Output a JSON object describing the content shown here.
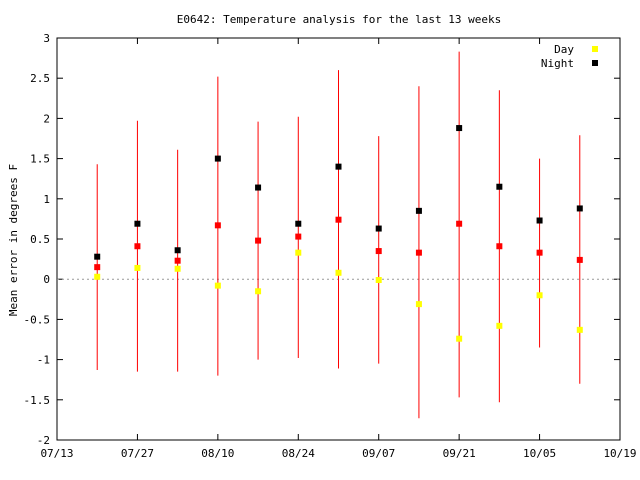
{
  "chart_data": {
    "type": "scatter",
    "title": "E0642: Temperature analysis for the last 13 weeks",
    "ylabel": "Mean error in degrees F",
    "xlabel": "",
    "x_range": [
      "07/13",
      "10/19"
    ],
    "ylim": [
      -2,
      3
    ],
    "x_ticks": [
      "07/13",
      "07/27",
      "08/10",
      "08/24",
      "09/07",
      "09/21",
      "10/05",
      "10/19"
    ],
    "y_ticks": [
      "-2",
      "-1.5",
      "-1",
      "-0.5",
      "0",
      "0.5",
      "1",
      "1.5",
      "2",
      "2.5",
      "3"
    ],
    "zero_line": true,
    "grid": false,
    "legend_position": "top-right",
    "weeks": [
      "07/20",
      "07/27",
      "08/03",
      "08/10",
      "08/17",
      "08/24",
      "08/31",
      "09/07",
      "09/14",
      "09/21",
      "09/28",
      "10/05",
      "10/12"
    ],
    "series": [
      {
        "name": "Day",
        "color": "#ffff00",
        "marker": "square",
        "values": [
          0.03,
          0.14,
          0.13,
          -0.08,
          -0.15,
          0.33,
          0.08,
          -0.01,
          -0.31,
          -0.74,
          -0.58,
          -0.2,
          -0.63
        ]
      },
      {
        "name": "Night",
        "color": "#000000",
        "marker": "square",
        "values": [
          0.28,
          0.69,
          0.36,
          1.5,
          1.14,
          0.69,
          1.4,
          0.63,
          0.85,
          1.88,
          1.15,
          0.73,
          0.88
        ]
      },
      {
        "color": "#ff0000",
        "marker": "square",
        "values": [
          0.15,
          0.41,
          0.23,
          0.67,
          0.48,
          0.53,
          0.74,
          0.35,
          0.33,
          0.69,
          0.41,
          0.33,
          0.24
        ],
        "error_low": [
          -1.13,
          -1.15,
          -1.15,
          -1.2,
          -1.0,
          -0.98,
          -1.11,
          -1.05,
          -1.73,
          -1.47,
          -1.53,
          -0.85,
          -1.3
        ],
        "error_high": [
          1.43,
          1.97,
          1.61,
          2.52,
          1.96,
          2.02,
          2.6,
          1.78,
          2.4,
          2.83,
          2.35,
          1.5,
          1.79
        ]
      }
    ],
    "colors": {
      "axis": "#000000",
      "zero_line": "#999999",
      "error_bar": "#ff0000"
    }
  }
}
